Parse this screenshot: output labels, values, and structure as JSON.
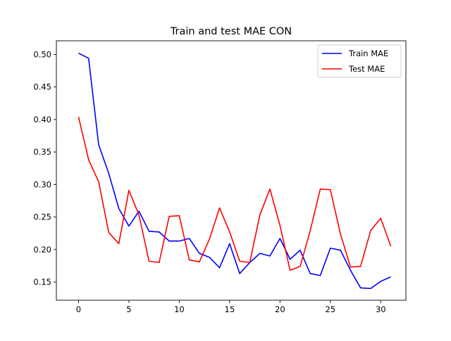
{
  "chart_data": {
    "type": "line",
    "title": "Train and test MAE CON",
    "xlabel": "",
    "ylabel": "",
    "xlim": [
      -2.2,
      32.5
    ],
    "ylim": [
      0.122,
      0.521
    ],
    "x_ticks": [
      0,
      5,
      10,
      15,
      20,
      25,
      30
    ],
    "y_ticks": [
      0.15,
      0.2,
      0.25,
      0.3,
      0.35,
      0.4,
      0.45,
      0.5
    ],
    "x_tick_labels": [
      "0",
      "5",
      "10",
      "15",
      "20",
      "25",
      "30"
    ],
    "y_tick_labels": [
      "0.15",
      "0.20",
      "0.25",
      "0.30",
      "0.35",
      "0.40",
      "0.45",
      "0.50"
    ],
    "grid": false,
    "legend_position": "top-right",
    "x": [
      0,
      1,
      2,
      3,
      4,
      5,
      6,
      7,
      8,
      9,
      10,
      11,
      12,
      13,
      14,
      15,
      16,
      17,
      18,
      19,
      20,
      21,
      22,
      23,
      24,
      25,
      26,
      27,
      28,
      29,
      30,
      31
    ],
    "series": [
      {
        "name": "Train MAE",
        "color": "#0000ff",
        "values": [
          0.502,
          0.494,
          0.361,
          0.317,
          0.263,
          0.236,
          0.259,
          0.228,
          0.227,
          0.213,
          0.213,
          0.217,
          0.194,
          0.188,
          0.172,
          0.209,
          0.163,
          0.18,
          0.194,
          0.19,
          0.217,
          0.185,
          0.199,
          0.163,
          0.16,
          0.202,
          0.199,
          0.168,
          0.141,
          0.14,
          0.151,
          0.158
        ]
      },
      {
        "name": "Test MAE",
        "color": "#ff0000",
        "values": [
          0.404,
          0.338,
          0.304,
          0.226,
          0.209,
          0.291,
          0.253,
          0.182,
          0.18,
          0.251,
          0.252,
          0.184,
          0.181,
          0.216,
          0.264,
          0.227,
          0.182,
          0.18,
          0.253,
          0.293,
          0.237,
          0.168,
          0.174,
          0.229,
          0.293,
          0.292,
          0.224,
          0.173,
          0.174,
          0.229,
          0.248,
          0.205
        ]
      }
    ]
  }
}
